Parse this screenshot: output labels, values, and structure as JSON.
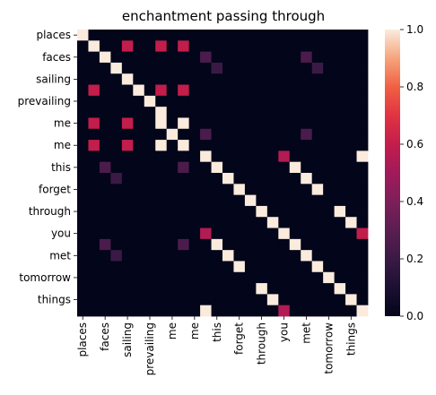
{
  "chart_data": {
    "type": "heatmap",
    "title": "enchantment passing through",
    "xlabel": "",
    "ylabel": "",
    "rows": [
      "places",
      "",
      "faces",
      "",
      "sailing",
      "",
      "prevailing",
      "",
      "me",
      "",
      "me",
      "",
      "this",
      "",
      "forget",
      "",
      "through",
      "",
      "you",
      "",
      "met",
      "",
      "tomorrow",
      "",
      "things",
      ""
    ],
    "cols": [
      "places",
      "",
      "faces",
      "",
      "sailing",
      "",
      "prevailing",
      "",
      "me",
      "",
      "me",
      "",
      "this",
      "",
      "forget",
      "",
      "through",
      "",
      "you",
      "",
      "met",
      "",
      "tomorrow",
      "",
      "things",
      ""
    ],
    "x_tick_labels": [
      "places",
      "faces",
      "sailing",
      "prevailing",
      "me",
      "me",
      "this",
      "forget",
      "through",
      "you",
      "met",
      "tomorrow",
      "things"
    ],
    "y_tick_labels": [
      "places",
      "faces",
      "sailing",
      "prevailing",
      "me",
      "me",
      "this",
      "forget",
      "through",
      "you",
      "met",
      "tomorrow",
      "things"
    ],
    "matrix": [
      [
        1,
        0,
        0,
        0,
        0,
        0,
        0,
        0,
        0,
        0,
        0,
        0,
        0,
        0,
        0,
        0,
        0,
        0,
        0,
        0,
        0,
        0,
        0,
        0,
        0,
        0
      ],
      [
        0,
        1,
        0,
        0,
        0.6,
        0,
        0,
        0.6,
        0,
        0.6,
        0,
        0,
        0,
        0,
        0,
        0,
        0,
        0,
        0,
        0,
        0,
        0,
        0,
        0,
        0,
        0
      ],
      [
        0,
        0,
        1,
        0,
        0,
        0,
        0,
        0,
        0,
        0,
        0,
        0.25,
        0,
        0,
        0,
        0,
        0,
        0,
        0,
        0,
        0.25,
        0,
        0,
        0,
        0,
        0
      ],
      [
        0,
        0,
        0,
        1,
        0,
        0,
        0,
        0,
        0,
        0,
        0,
        0,
        0.2,
        0,
        0,
        0,
        0,
        0,
        0,
        0,
        0,
        0.2,
        0,
        0,
        0,
        0
      ],
      [
        0,
        0,
        0,
        0,
        1,
        0,
        0,
        0,
        0,
        0,
        0,
        0,
        0,
        0,
        0,
        0,
        0,
        0,
        0,
        0,
        0,
        0,
        0,
        0,
        0,
        0
      ],
      [
        0,
        0.6,
        0,
        0,
        0,
        1,
        0,
        0.6,
        0,
        0.6,
        0,
        0,
        0,
        0,
        0,
        0,
        0,
        0,
        0,
        0,
        0,
        0,
        0,
        0,
        0,
        0
      ],
      [
        0,
        0,
        0,
        0,
        0,
        0,
        1,
        0,
        0,
        0,
        0,
        0,
        0,
        0,
        0,
        0,
        0,
        0,
        0,
        0,
        0,
        0,
        0,
        0,
        0,
        0
      ],
      [
        0,
        0,
        0,
        0,
        0,
        0,
        0,
        1,
        0,
        0,
        0,
        0,
        0,
        0,
        0,
        0,
        0,
        0,
        0,
        0,
        0,
        0,
        0,
        0,
        0,
        0
      ],
      [
        0,
        0.6,
        0,
        0,
        0.6,
        0,
        0,
        1,
        0,
        1,
        0,
        0,
        0,
        0,
        0,
        0,
        0,
        0,
        0,
        0,
        0,
        0,
        0,
        0,
        0,
        0
      ],
      [
        0,
        0,
        0,
        0,
        0,
        0,
        0,
        0,
        1,
        0,
        0,
        0.25,
        0,
        0,
        0,
        0,
        0,
        0,
        0,
        0,
        0.25,
        0,
        0,
        0,
        0,
        0
      ],
      [
        0,
        0.6,
        0,
        0,
        0.6,
        0,
        0,
        1,
        0,
        1,
        0,
        0,
        0,
        0,
        0,
        0,
        0,
        0,
        0,
        0,
        0,
        0,
        0,
        0,
        0,
        0
      ],
      [
        0,
        0,
        0,
        0,
        0,
        0,
        0,
        0,
        0,
        0,
        0,
        1,
        0,
        0,
        0,
        0,
        0,
        0,
        0.55,
        0,
        0,
        0,
        0,
        0,
        0,
        1
      ],
      [
        0,
        0,
        0.25,
        0,
        0,
        0,
        0,
        0,
        0,
        0.25,
        0,
        0,
        1,
        0,
        0,
        0,
        0,
        0,
        0,
        1,
        0,
        0,
        0,
        0,
        0,
        0
      ],
      [
        0,
        0,
        0,
        0.2,
        0,
        0,
        0,
        0,
        0,
        0,
        0,
        0,
        0,
        1,
        0,
        0,
        0,
        0,
        0,
        0,
        1,
        0,
        0,
        0,
        0,
        0
      ],
      [
        0,
        0,
        0,
        0,
        0,
        0,
        0,
        0,
        0,
        0,
        0,
        0,
        0,
        0,
        1,
        0,
        0,
        0,
        0,
        0,
        0,
        1,
        0,
        0,
        0,
        0
      ],
      [
        0,
        0,
        0,
        0,
        0,
        0,
        0,
        0,
        0,
        0,
        0,
        0,
        0,
        0,
        0,
        1,
        0,
        0,
        0,
        0,
        0,
        0,
        0,
        0,
        0,
        0
      ],
      [
        0,
        0,
        0,
        0,
        0,
        0,
        0,
        0,
        0,
        0,
        0,
        0,
        0,
        0,
        0,
        0,
        1,
        0,
        0,
        0,
        0,
        0,
        0,
        1,
        0,
        0
      ],
      [
        0,
        0,
        0,
        0,
        0,
        0,
        0,
        0,
        0,
        0,
        0,
        0,
        0,
        0,
        0,
        0,
        0,
        1,
        0,
        0,
        0,
        0,
        0,
        0,
        1,
        0
      ],
      [
        0,
        0,
        0,
        0,
        0,
        0,
        0,
        0,
        0,
        0,
        0,
        0.55,
        0,
        0,
        0,
        0,
        0,
        0,
        1,
        0,
        0,
        0,
        0,
        0,
        0,
        0.6
      ],
      [
        0,
        0,
        0.25,
        0,
        0,
        0,
        0,
        0,
        0,
        0.25,
        0,
        0,
        1,
        0,
        0,
        0,
        0,
        0,
        0,
        1,
        0,
        0,
        0,
        0,
        0,
        0
      ],
      [
        0,
        0,
        0,
        0.2,
        0,
        0,
        0,
        0,
        0,
        0,
        0,
        0,
        0,
        1,
        0,
        0,
        0,
        0,
        0,
        0,
        1,
        0,
        0,
        0,
        0,
        0
      ],
      [
        0,
        0,
        0,
        0,
        0,
        0,
        0,
        0,
        0,
        0,
        0,
        0,
        0,
        0,
        1,
        0,
        0,
        0,
        0,
        0,
        0,
        1,
        0,
        0,
        0,
        0
      ],
      [
        0,
        0,
        0,
        0,
        0,
        0,
        0,
        0,
        0,
        0,
        0,
        0,
        0,
        0,
        0,
        0,
        0,
        0,
        0,
        0,
        0,
        0,
        1,
        0,
        0,
        0
      ],
      [
        0,
        0,
        0,
        0,
        0,
        0,
        0,
        0,
        0,
        0,
        0,
        0,
        0,
        0,
        0,
        0,
        1,
        0,
        0,
        0,
        0,
        0,
        0,
        1,
        0,
        0
      ],
      [
        0,
        0,
        0,
        0,
        0,
        0,
        0,
        0,
        0,
        0,
        0,
        0,
        0,
        0,
        0,
        0,
        0,
        1,
        0,
        0,
        0,
        0,
        0,
        0,
        1,
        0
      ],
      [
        0,
        0,
        0,
        0,
        0,
        0,
        0,
        0,
        0,
        0,
        0,
        1,
        0,
        0,
        0,
        0,
        0,
        0,
        0.55,
        0,
        0,
        0,
        0,
        0,
        0,
        1
      ]
    ],
    "value_range": [
      0,
      1
    ],
    "colorbar_ticks": [
      "0.0",
      "0.2",
      "0.4",
      "0.6",
      "0.8",
      "1.0"
    ],
    "colormap": "rocket",
    "grid": false,
    "legend": "colorbar-right"
  }
}
